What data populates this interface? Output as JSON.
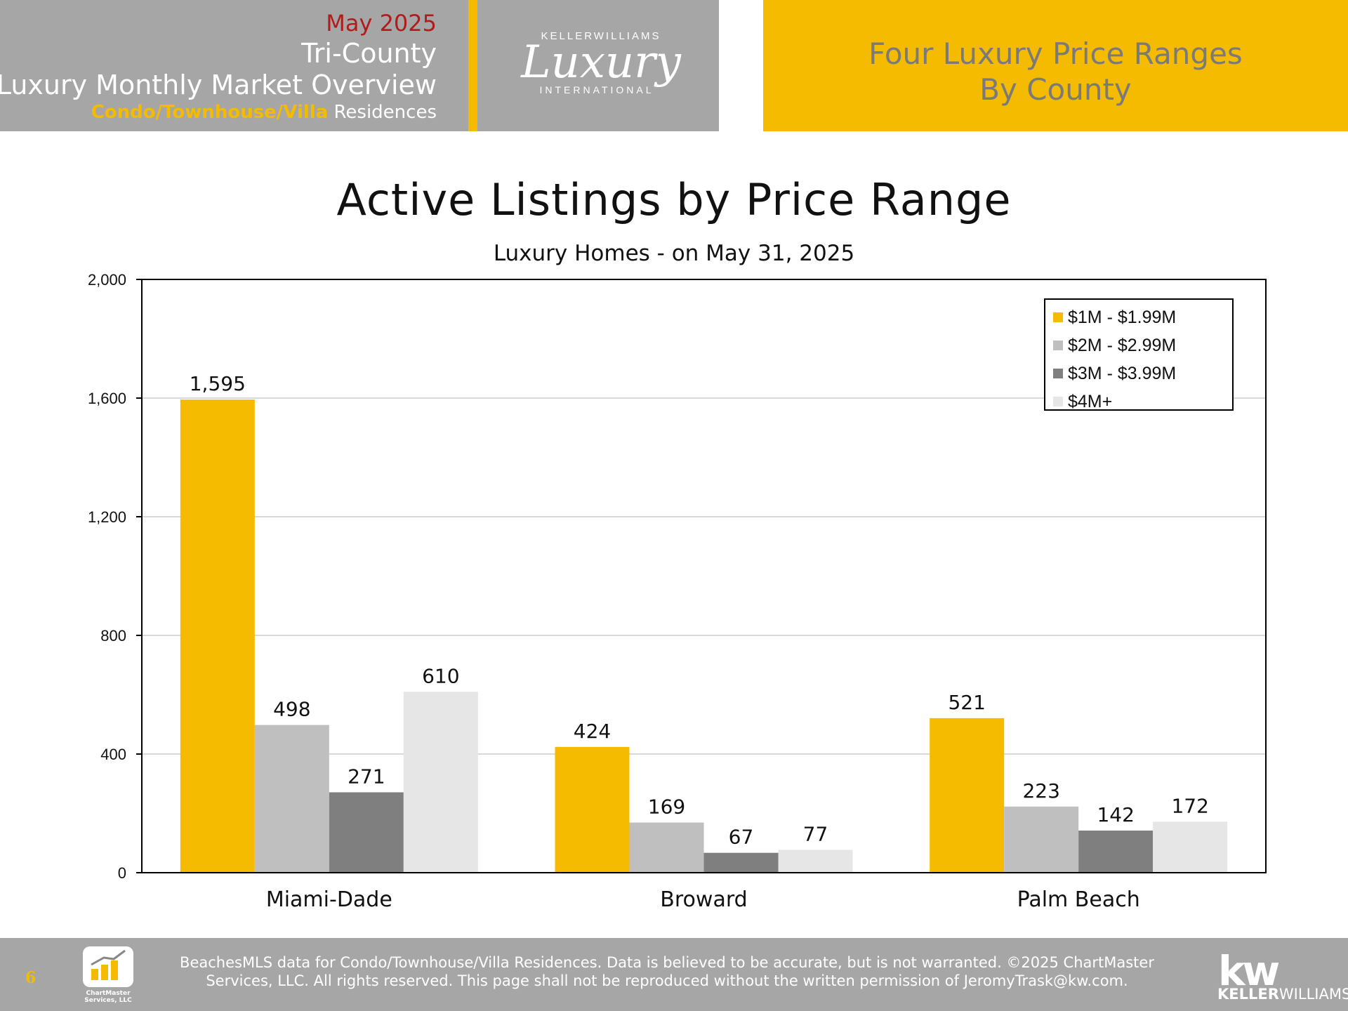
{
  "header": {
    "month": "May 2025",
    "region": "Tri-County",
    "title": "Luxury Monthly Market Overview",
    "property_type_highlight": "Condo/Townhouse/Villa",
    "property_type_rest": " Residences",
    "logo_top": "KELLERWILLIAMS",
    "logo_script": "Luxury",
    "logo_bottom": "INTERNATIONAL",
    "section_line1": "Four Luxury Price Ranges",
    "section_line2": "By County"
  },
  "chart_data": {
    "type": "bar",
    "title": "Active Listings by Price Range",
    "subtitle": "Luxury Homes - on May 31, 2025",
    "categories": [
      "Miami-Dade",
      "Broward",
      "Palm Beach"
    ],
    "series": [
      {
        "name": "$1M - $1.99M",
        "values": [
          1595,
          424,
          521
        ],
        "labels": [
          "1,595",
          "424",
          "521"
        ],
        "color": "#f5bb00"
      },
      {
        "name": "$2M - $2.99M",
        "values": [
          498,
          169,
          223
        ],
        "labels": [
          "498",
          "169",
          "223"
        ],
        "color": "#bfbfbf"
      },
      {
        "name": "$3M - $3.99M",
        "values": [
          271,
          67,
          142
        ],
        "labels": [
          "271",
          "67",
          "142"
        ],
        "color": "#7f7f7f"
      },
      {
        "name": "$4M+",
        "values": [
          610,
          77,
          172
        ],
        "labels": [
          "610",
          "77",
          "172"
        ],
        "color": "#e6e6e6"
      }
    ],
    "ylim": [
      0,
      2000
    ],
    "yticks": [
      0,
      400,
      800,
      1200,
      1600,
      2000
    ],
    "ytick_labels": [
      "0",
      "400",
      "800",
      "1,200",
      "1,600",
      "2,000"
    ],
    "grid": true,
    "legend_position": "top-right"
  },
  "footer": {
    "page_number": "6",
    "chartmaster_label_1": "ChartMaster",
    "chartmaster_label_2": "Services, LLC",
    "note_line1": "BeachesMLS data for Condo/Townhouse/Villa Residences.  Data is believed to be accurate, but is not warranted.   ©2025  ChartMaster",
    "note_line2": "Services, LLC.  All rights reserved. This page shall not be reproduced without the written permission of JeromyTrask@kw.com.",
    "kw_mark": "kw",
    "kw_name_bold": "KELLER",
    "kw_name_rest": "WILLIAMS."
  }
}
